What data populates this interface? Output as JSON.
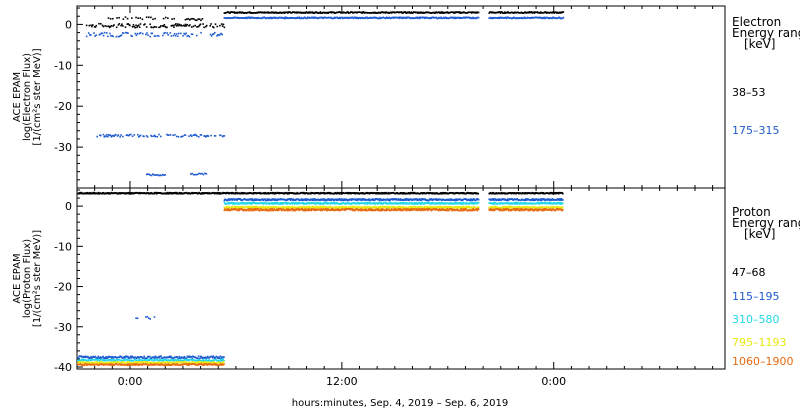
{
  "chart_data": [
    {
      "type": "scatter",
      "panel": "electron",
      "ylabel_lines": [
        "ACE EPAM",
        "log(Electron Flux)",
        "[1/(cm²s ster MeV)]"
      ],
      "ylim": [
        -40,
        4.5
      ],
      "yticks": [
        0,
        -10,
        -20,
        -30
      ],
      "legend_title_lines": [
        "Electron",
        "Energy range",
        "[keV]"
      ],
      "series": [
        {
          "name": "38–53",
          "color": "#000000",
          "segments": [
            {
              "x0": -2.5,
              "x1": 5.3,
              "y": -0.3,
              "jitter": 0.5,
              "step": 0.05,
              "dash": true
            },
            {
              "x0": -1.5,
              "x1": 2.5,
              "y": 1.5,
              "jitter": 0.3,
              "step": 0.12,
              "dash": true
            },
            {
              "x0": 3.1,
              "x1": 4.1,
              "y": 1.3,
              "jitter": 0.3,
              "step": 0.08,
              "dash": false
            },
            {
              "x0": 5.3,
              "x1": 19.7,
              "y": 2.9,
              "jitter": 0.15,
              "step": 0.04,
              "dash": false
            },
            {
              "x0": 20.3,
              "x1": 24.5,
              "y": 2.9,
              "jitter": 0.15,
              "step": 0.04,
              "dash": false
            }
          ]
        },
        {
          "name": "175–315",
          "color": "#1f5bd0",
          "segments": [
            {
              "x0": -2.5,
              "x1": 5.3,
              "y": -2.5,
              "jitter": 0.5,
              "step": 0.06,
              "dash": true
            },
            {
              "x0": -2.0,
              "x1": 5.3,
              "y": -27.2,
              "jitter": 0.3,
              "step": 0.05,
              "dash": true
            },
            {
              "x0": 0.9,
              "x1": 2.0,
              "y": -36.8,
              "jitter": 0.2,
              "step": 0.07,
              "dash": false
            },
            {
              "x0": 3.4,
              "x1": 4.3,
              "y": -36.6,
              "jitter": 0.2,
              "step": 0.08,
              "dash": false
            },
            {
              "x0": 5.3,
              "x1": 19.7,
              "y": 1.6,
              "jitter": 0.15,
              "step": 0.04,
              "dash": false
            },
            {
              "x0": 20.3,
              "x1": 24.5,
              "y": 1.6,
              "jitter": 0.15,
              "step": 0.04,
              "dash": false
            }
          ]
        }
      ]
    },
    {
      "type": "scatter",
      "panel": "proton",
      "ylabel_lines": [
        "ACE EPAM",
        "log(Proton Flux)",
        "[1/(cm²s ster MeV)]"
      ],
      "ylim": [
        -40.5,
        4.5
      ],
      "yticks": [
        0,
        -10,
        -20,
        -30,
        -40
      ],
      "legend_title_lines": [
        "Proton",
        "Energy range",
        "[keV]"
      ],
      "series": [
        {
          "name": "47–68",
          "color": "#000000",
          "segments": [
            {
              "x0": -3.0,
              "x1": 19.7,
              "y": 3.2,
              "jitter": 0.15,
              "step": 0.03,
              "dash": false
            },
            {
              "x0": 20.3,
              "x1": 24.5,
              "y": 3.2,
              "jitter": 0.15,
              "step": 0.03,
              "dash": false
            }
          ]
        },
        {
          "name": "115–195",
          "color": "#1f5bd0",
          "segments": [
            {
              "x0": -3.0,
              "x1": 5.3,
              "y": -37.6,
              "jitter": 0.3,
              "step": 0.04,
              "dash": false
            },
            {
              "x0": 0.3,
              "x1": 1.5,
              "y": -27.8,
              "jitter": 0.3,
              "step": 0.08,
              "dash": true
            },
            {
              "x0": 5.3,
              "x1": 19.7,
              "y": 1.6,
              "jitter": 0.2,
              "step": 0.03,
              "dash": false
            },
            {
              "x0": 20.3,
              "x1": 24.5,
              "y": 1.6,
              "jitter": 0.2,
              "step": 0.03,
              "dash": false
            }
          ]
        },
        {
          "name": "310–580",
          "color": "#22d8e8",
          "segments": [
            {
              "x0": -3.0,
              "x1": 5.3,
              "y": -38.3,
              "jitter": 0.2,
              "step": 0.04,
              "dash": false
            },
            {
              "x0": 5.3,
              "x1": 19.7,
              "y": 0.7,
              "jitter": 0.2,
              "step": 0.03,
              "dash": false
            },
            {
              "x0": 20.3,
              "x1": 24.5,
              "y": 0.7,
              "jitter": 0.2,
              "step": 0.03,
              "dash": false
            }
          ]
        },
        {
          "name": "795–1193",
          "color": "#e8e810",
          "segments": [
            {
              "x0": -3.0,
              "x1": 5.3,
              "y": -38.9,
              "jitter": 0.2,
              "step": 0.04,
              "dash": false
            },
            {
              "x0": 5.3,
              "x1": 19.7,
              "y": -0.3,
              "jitter": 0.2,
              "step": 0.03,
              "dash": false
            },
            {
              "x0": 20.3,
              "x1": 24.5,
              "y": -0.3,
              "jitter": 0.2,
              "step": 0.03,
              "dash": false
            }
          ]
        },
        {
          "name": "1060–1900",
          "color": "#e86a10",
          "segments": [
            {
              "x0": -3.0,
              "x1": 5.3,
              "y": -39.4,
              "jitter": 0.2,
              "step": 0.04,
              "dash": false
            },
            {
              "x0": 5.3,
              "x1": 19.7,
              "y": -0.9,
              "jitter": 0.25,
              "step": 0.03,
              "dash": false
            },
            {
              "x0": 20.3,
              "x1": 24.5,
              "y": -0.9,
              "jitter": 0.25,
              "step": 0.03,
              "dash": false
            }
          ]
        }
      ]
    }
  ],
  "x_axis": {
    "range_hours": [
      -3,
      33.7
    ],
    "ticks": [
      {
        "hours": 0,
        "label": "0:00"
      },
      {
        "hours": 12,
        "label": "12:00"
      },
      {
        "hours": 24,
        "label": "0:00"
      }
    ],
    "minor_step_hours": 1,
    "title": "hours:minutes, Sep.  4, 2019 – Sep.  6, 2019"
  }
}
